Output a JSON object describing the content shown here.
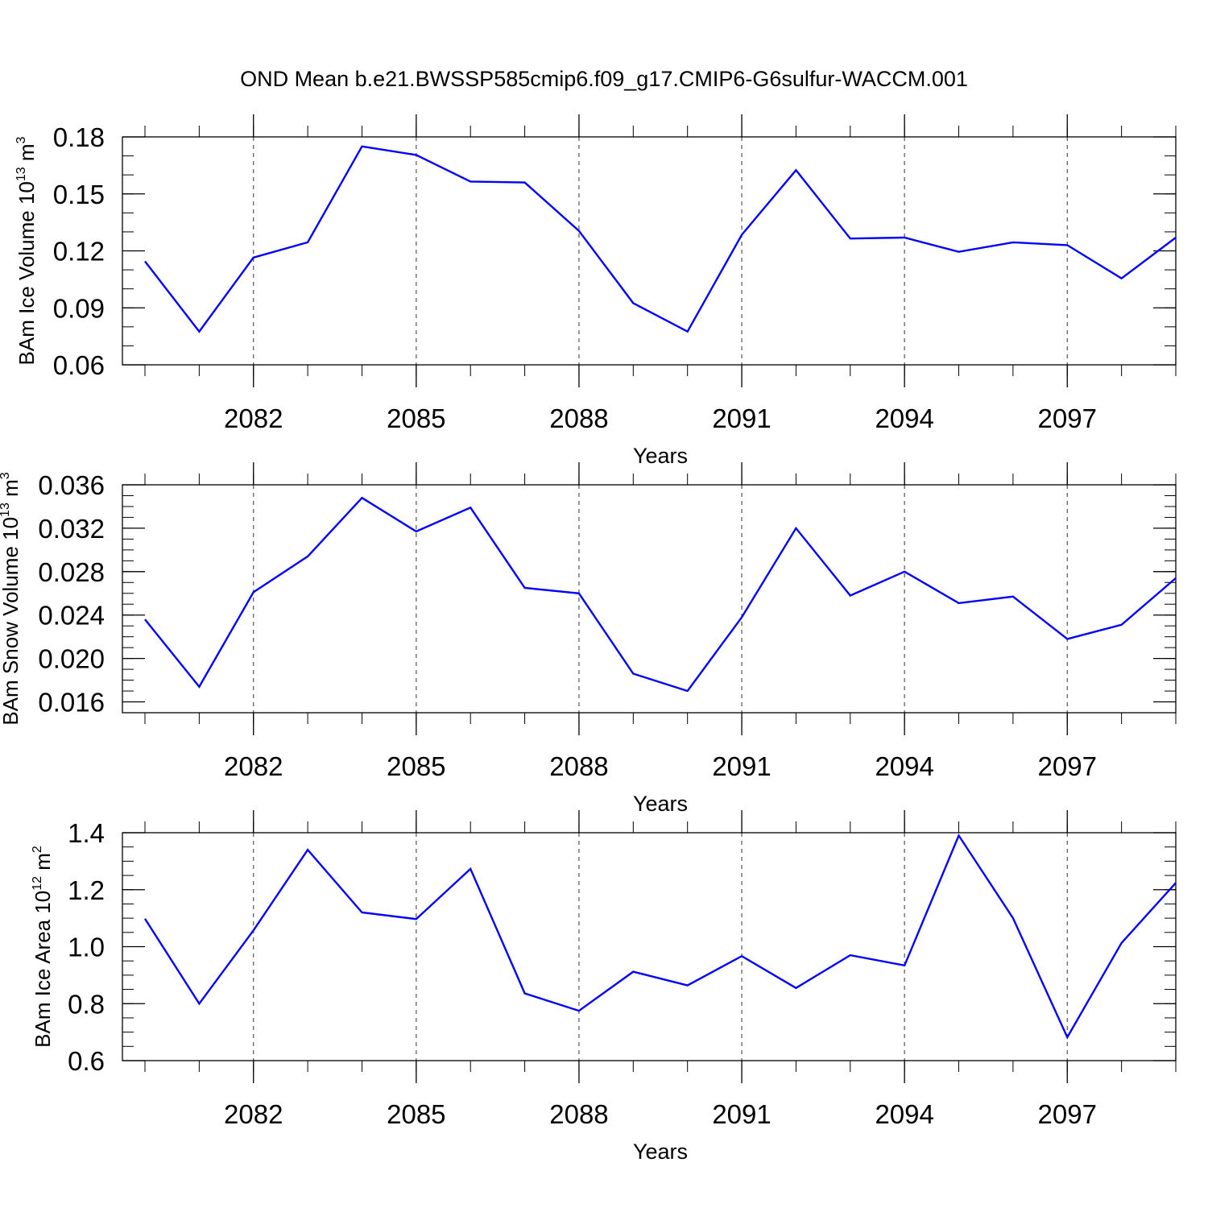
{
  "figure": {
    "title": "OND Mean b.e21.BWSSP585cmip6.f09_g17.CMIP6-G6sulfur-WACCM.001"
  },
  "colors": {
    "line": "#0000ff",
    "frame": "#000000",
    "grid": "#555555"
  },
  "chart_data": [
    {
      "type": "line",
      "xlabel": "Years",
      "ylabel": {
        "main": "BAm Ice Volume 10",
        "exp": "13",
        "unit": " m",
        "unit_exp": "3"
      },
      "xlim": [
        2080,
        2099
      ],
      "ylim": [
        0.06,
        0.18
      ],
      "x_ticks": [
        2082,
        2085,
        2088,
        2091,
        2094,
        2097
      ],
      "x_tick_labels": [
        "2082",
        "2085",
        "2088",
        "2091",
        "2094",
        "2097"
      ],
      "y_ticks": [
        0.06,
        0.09,
        0.12,
        0.15,
        0.18
      ],
      "y_tick_labels": [
        "0.06",
        "0.09",
        "0.12",
        "0.15",
        "0.18"
      ],
      "y_minor_step": 0.01,
      "grid": "vertical dashed at labeled years",
      "x": [
        2080,
        2081,
        2082,
        2083,
        2084,
        2085,
        2086,
        2087,
        2088,
        2089,
        2090,
        2091,
        2092,
        2093,
        2094,
        2095,
        2096,
        2097,
        2098,
        2099
      ],
      "series": [
        {
          "values": [
            0.1145,
            0.0775,
            0.1165,
            0.1245,
            0.175,
            0.1705,
            0.1565,
            0.156,
            0.1305,
            0.0925,
            0.0775,
            0.1285,
            0.1625,
            0.1265,
            0.127,
            0.1195,
            0.1245,
            0.123,
            0.1055,
            0.127
          ]
        }
      ]
    },
    {
      "type": "line",
      "xlabel": "Years",
      "ylabel": {
        "main": "BAm Snow Volume 10",
        "exp": "13",
        "unit": " m",
        "unit_exp": "3"
      },
      "xlim": [
        2080,
        2099
      ],
      "ylim": [
        0.015,
        0.036
      ],
      "x_ticks": [
        2082,
        2085,
        2088,
        2091,
        2094,
        2097
      ],
      "x_tick_labels": [
        "2082",
        "2085",
        "2088",
        "2091",
        "2094",
        "2097"
      ],
      "y_ticks": [
        0.016,
        0.02,
        0.024,
        0.028,
        0.032,
        0.036
      ],
      "y_tick_labels": [
        "0.016",
        "0.020",
        "0.024",
        "0.028",
        "0.032",
        "0.036"
      ],
      "y_minor_step": 0.001,
      "grid": "vertical dashed at labeled years",
      "x": [
        2080,
        2081,
        2082,
        2083,
        2084,
        2085,
        2086,
        2087,
        2088,
        2089,
        2090,
        2091,
        2092,
        2093,
        2094,
        2095,
        2096,
        2097,
        2098,
        2099
      ],
      "series": [
        {
          "values": [
            0.0236,
            0.0174,
            0.0261,
            0.0294,
            0.0348,
            0.0317,
            0.0339,
            0.0265,
            0.026,
            0.0186,
            0.017,
            0.0238,
            0.032,
            0.0258,
            0.028,
            0.0251,
            0.0257,
            0.0218,
            0.0231,
            0.0274
          ]
        }
      ]
    },
    {
      "type": "line",
      "xlabel": "Years",
      "ylabel": {
        "main": "BAm Ice Area 10",
        "exp": "12",
        "unit": " m",
        "unit_exp": "2"
      },
      "xlim": [
        2080,
        2099
      ],
      "ylim": [
        0.6,
        1.4
      ],
      "x_ticks": [
        2082,
        2085,
        2088,
        2091,
        2094,
        2097
      ],
      "x_tick_labels": [
        "2082",
        "2085",
        "2088",
        "2091",
        "2094",
        "2097"
      ],
      "y_ticks": [
        0.6,
        0.8,
        1.0,
        1.2,
        1.4
      ],
      "y_tick_labels": [
        "0.6",
        "0.8",
        "1.0",
        "1.2",
        "1.4"
      ],
      "y_minor_step": 0.05,
      "grid": "vertical dashed at labeled years",
      "x": [
        2080,
        2081,
        2082,
        2083,
        2084,
        2085,
        2086,
        2087,
        2088,
        2089,
        2090,
        2091,
        2092,
        2093,
        2094,
        2095,
        2096,
        2097,
        2098,
        2099
      ],
      "series": [
        {
          "values": [
            1.098,
            0.8,
            1.057,
            1.34,
            1.12,
            1.097,
            1.273,
            0.836,
            0.775,
            0.912,
            0.864,
            0.967,
            0.855,
            0.97,
            0.934,
            1.39,
            1.1,
            0.682,
            1.013,
            1.224
          ]
        }
      ]
    }
  ]
}
